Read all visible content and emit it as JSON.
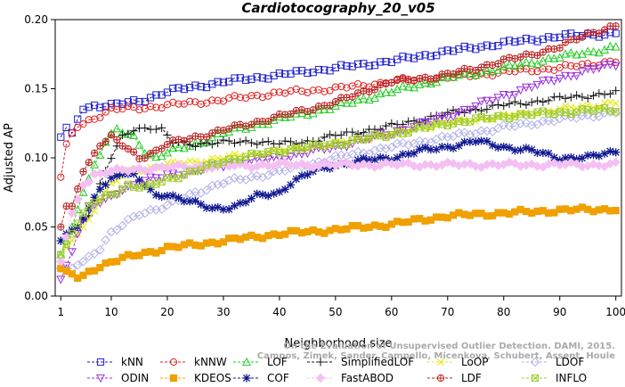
{
  "chart_data": {
    "type": "line",
    "title": "Cardiotocography_20_v05",
    "xlabel": "Neighborhood size",
    "ylabel": "Adjusted AP",
    "xlim": [
      0,
      101
    ],
    "ylim": [
      0,
      0.2
    ],
    "xticks": [
      1,
      10,
      20,
      30,
      40,
      50,
      60,
      70,
      80,
      90,
      100
    ],
    "yticks": [
      0,
      0.05,
      0.1,
      0.15,
      0.2
    ],
    "ytick_labels": [
      "0.00",
      "0.05",
      "0.10",
      "0.15",
      "0.20"
    ],
    "grid": false,
    "legend_position": "bottom",
    "watermark": "Campos, Zimek, Sander, Campello, Micenkova, Schubert, Assent, Houle  ·  On the Evaluation of Unsupervised Outlier Detection. DAMI, 2015.",
    "watermark_lines": [
      "On the Evaluation of Unsupervised Outlier Detection. DAMI, 2015.",
      "Campos, Zimek, Sander, Campello, Micenkova, Schubert, Assent, Houle"
    ],
    "series": [
      {
        "name": "kNN",
        "color": "#1f1fd0",
        "marker": "square",
        "anchors": [
          [
            1,
            0.115
          ],
          [
            2,
            0.122
          ],
          [
            3,
            0.118
          ],
          [
            4,
            0.128
          ],
          [
            5,
            0.135
          ],
          [
            7,
            0.138
          ],
          [
            10,
            0.138
          ],
          [
            15,
            0.141
          ],
          [
            20,
            0.148
          ],
          [
            30,
            0.155
          ],
          [
            40,
            0.16
          ],
          [
            50,
            0.165
          ],
          [
            60,
            0.17
          ],
          [
            70,
            0.177
          ],
          [
            80,
            0.183
          ],
          [
            90,
            0.188
          ],
          [
            100,
            0.19
          ]
        ]
      },
      {
        "name": "kNNW",
        "color": "#e02020",
        "marker": "circle",
        "anchors": [
          [
            1,
            0.086
          ],
          [
            2,
            0.11
          ],
          [
            3,
            0.118
          ],
          [
            4,
            0.122
          ],
          [
            6,
            0.127
          ],
          [
            8,
            0.131
          ],
          [
            10,
            0.135
          ],
          [
            15,
            0.136
          ],
          [
            20,
            0.138
          ],
          [
            30,
            0.142
          ],
          [
            40,
            0.147
          ],
          [
            50,
            0.15
          ],
          [
            60,
            0.155
          ],
          [
            70,
            0.158
          ],
          [
            80,
            0.162
          ],
          [
            90,
            0.165
          ],
          [
            100,
            0.17
          ]
        ]
      },
      {
        "name": "LOF",
        "color": "#22cc22",
        "marker": "triangle",
        "anchors": [
          [
            1,
            0.03
          ],
          [
            2,
            0.04
          ],
          [
            3,
            0.05
          ],
          [
            5,
            0.075
          ],
          [
            7,
            0.095
          ],
          [
            9,
            0.112
          ],
          [
            11,
            0.12
          ],
          [
            14,
            0.115
          ],
          [
            16,
            0.105
          ],
          [
            18,
            0.1
          ],
          [
            20,
            0.104
          ],
          [
            25,
            0.11
          ],
          [
            30,
            0.118
          ],
          [
            40,
            0.128
          ],
          [
            50,
            0.137
          ],
          [
            60,
            0.148
          ],
          [
            70,
            0.158
          ],
          [
            80,
            0.165
          ],
          [
            90,
            0.173
          ],
          [
            100,
            0.18
          ]
        ]
      },
      {
        "name": "SimplifiedLOF",
        "color": "#111111",
        "marker": "plus",
        "anchors": [
          [
            1,
            0.04
          ],
          [
            2,
            0.045
          ],
          [
            4,
            0.05
          ],
          [
            6,
            0.06
          ],
          [
            8,
            0.08
          ],
          [
            10,
            0.1
          ],
          [
            12,
            0.115
          ],
          [
            14,
            0.121
          ],
          [
            17,
            0.122
          ],
          [
            19,
            0.12
          ],
          [
            21,
            0.111
          ],
          [
            25,
            0.11
          ],
          [
            30,
            0.111
          ],
          [
            35,
            0.112
          ],
          [
            40,
            0.11
          ],
          [
            45,
            0.112
          ],
          [
            50,
            0.116
          ],
          [
            60,
            0.123
          ],
          [
            70,
            0.132
          ],
          [
            80,
            0.138
          ],
          [
            90,
            0.143
          ],
          [
            100,
            0.147
          ]
        ]
      },
      {
        "name": "LoOP",
        "color": "#e8e800",
        "marker": "x",
        "anchors": [
          [
            1,
            0.03
          ],
          [
            2,
            0.035
          ],
          [
            4,
            0.045
          ],
          [
            6,
            0.055
          ],
          [
            8,
            0.07
          ],
          [
            10,
            0.08
          ],
          [
            13,
            0.09
          ],
          [
            16,
            0.092
          ],
          [
            20,
            0.095
          ],
          [
            30,
            0.1
          ],
          [
            40,
            0.105
          ],
          [
            50,
            0.11
          ],
          [
            60,
            0.118
          ],
          [
            70,
            0.125
          ],
          [
            80,
            0.13
          ],
          [
            90,
            0.135
          ],
          [
            100,
            0.14
          ]
        ]
      },
      {
        "name": "LDOF",
        "color": "#b0b0e8",
        "marker": "diamond",
        "anchors": [
          [
            1,
            0.02
          ],
          [
            3,
            0.02
          ],
          [
            5,
            0.025
          ],
          [
            8,
            0.035
          ],
          [
            10,
            0.045
          ],
          [
            15,
            0.06
          ],
          [
            20,
            0.065
          ],
          [
            25,
            0.075
          ],
          [
            30,
            0.082
          ],
          [
            40,
            0.09
          ],
          [
            50,
            0.1
          ],
          [
            60,
            0.108
          ],
          [
            70,
            0.115
          ],
          [
            80,
            0.122
          ],
          [
            90,
            0.128
          ],
          [
            100,
            0.133
          ]
        ]
      },
      {
        "name": "ODIN",
        "color": "#9933dd",
        "marker": "triangle-down",
        "anchors": [
          [
            1,
            0.012
          ],
          [
            2,
            0.022
          ],
          [
            3,
            0.032
          ],
          [
            4,
            0.045
          ],
          [
            5,
            0.055
          ],
          [
            6,
            0.063
          ],
          [
            8,
            0.068
          ],
          [
            10,
            0.072
          ],
          [
            12,
            0.078
          ],
          [
            14,
            0.08
          ],
          [
            16,
            0.083
          ],
          [
            18,
            0.085
          ],
          [
            20,
            0.088
          ],
          [
            25,
            0.09
          ],
          [
            30,
            0.095
          ],
          [
            40,
            0.1
          ],
          [
            50,
            0.108
          ],
          [
            60,
            0.118
          ],
          [
            70,
            0.13
          ],
          [
            80,
            0.145
          ],
          [
            90,
            0.158
          ],
          [
            100,
            0.168
          ]
        ]
      },
      {
        "name": "KDEOS",
        "color": "#f0a000",
        "marker": "square-cross",
        "anchors": [
          [
            1,
            0.02
          ],
          [
            2,
            0.018
          ],
          [
            3,
            0.016
          ],
          [
            4,
            0.013
          ],
          [
            5,
            0.015
          ],
          [
            7,
            0.02
          ],
          [
            10,
            0.025
          ],
          [
            15,
            0.03
          ],
          [
            20,
            0.035
          ],
          [
            25,
            0.037
          ],
          [
            30,
            0.04
          ],
          [
            40,
            0.045
          ],
          [
            50,
            0.048
          ],
          [
            60,
            0.052
          ],
          [
            70,
            0.058
          ],
          [
            80,
            0.06
          ],
          [
            90,
            0.062
          ],
          [
            100,
            0.063
          ]
        ]
      },
      {
        "name": "COF",
        "color": "#101890",
        "marker": "star",
        "anchors": [
          [
            1,
            0.04
          ],
          [
            2,
            0.045
          ],
          [
            4,
            0.05
          ],
          [
            6,
            0.062
          ],
          [
            8,
            0.078
          ],
          [
            10,
            0.085
          ],
          [
            12,
            0.09
          ],
          [
            14,
            0.087
          ],
          [
            16,
            0.08
          ],
          [
            18,
            0.072
          ],
          [
            20,
            0.074
          ],
          [
            25,
            0.067
          ],
          [
            28,
            0.063
          ],
          [
            32,
            0.065
          ],
          [
            36,
            0.072
          ],
          [
            40,
            0.075
          ],
          [
            42,
            0.082
          ],
          [
            46,
            0.09
          ],
          [
            50,
            0.095
          ],
          [
            55,
            0.098
          ],
          [
            60,
            0.1
          ],
          [
            65,
            0.105
          ],
          [
            70,
            0.108
          ],
          [
            75,
            0.112
          ],
          [
            80,
            0.108
          ],
          [
            85,
            0.105
          ],
          [
            90,
            0.1
          ],
          [
            95,
            0.1
          ],
          [
            100,
            0.105
          ]
        ]
      },
      {
        "name": "FastABOD",
        "color": "#f4c0f4",
        "marker": "diamond-filled",
        "anchors": [
          [
            1,
            0.025
          ],
          [
            3,
            0.06
          ],
          [
            5,
            0.08
          ],
          [
            7,
            0.088
          ],
          [
            10,
            0.09
          ],
          [
            15,
            0.092
          ],
          [
            20,
            0.093
          ],
          [
            30,
            0.094
          ],
          [
            40,
            0.095
          ],
          [
            50,
            0.095
          ],
          [
            60,
            0.095
          ],
          [
            70,
            0.095
          ],
          [
            80,
            0.095
          ],
          [
            90,
            0.095
          ],
          [
            100,
            0.095
          ]
        ]
      },
      {
        "name": "LDF",
        "color": "#bb2222",
        "marker": "circle-plus",
        "anchors": [
          [
            1,
            0.05
          ],
          [
            2,
            0.065
          ],
          [
            3,
            0.065
          ],
          [
            5,
            0.09
          ],
          [
            8,
            0.11
          ],
          [
            10,
            0.115
          ],
          [
            15,
            0.1
          ],
          [
            18,
            0.105
          ],
          [
            20,
            0.11
          ],
          [
            30,
            0.12
          ],
          [
            40,
            0.13
          ],
          [
            50,
            0.14
          ],
          [
            55,
            0.148
          ],
          [
            60,
            0.155
          ],
          [
            70,
            0.16
          ],
          [
            80,
            0.17
          ],
          [
            90,
            0.18
          ],
          [
            95,
            0.19
          ],
          [
            100,
            0.195
          ]
        ]
      },
      {
        "name": "INFLO",
        "color": "#a0cc30",
        "marker": "cross-square",
        "anchors": [
          [
            1,
            0.03
          ],
          [
            3,
            0.045
          ],
          [
            5,
            0.06
          ],
          [
            7,
            0.068
          ],
          [
            9,
            0.072
          ],
          [
            11,
            0.076
          ],
          [
            13,
            0.08
          ],
          [
            16,
            0.078
          ],
          [
            20,
            0.085
          ],
          [
            25,
            0.09
          ],
          [
            30,
            0.098
          ],
          [
            40,
            0.105
          ],
          [
            50,
            0.11
          ],
          [
            60,
            0.117
          ],
          [
            70,
            0.125
          ],
          [
            80,
            0.13
          ],
          [
            90,
            0.133
          ],
          [
            100,
            0.135
          ]
        ]
      }
    ]
  }
}
